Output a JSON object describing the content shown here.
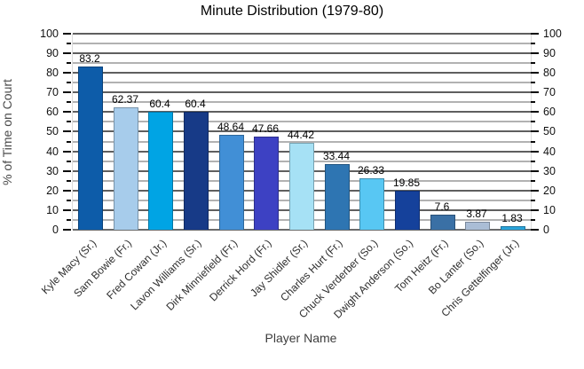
{
  "chart_data": {
    "type": "bar",
    "title": "Minute Distribution (1979-80)",
    "xlabel": "Player Name",
    "ylabel": "% of Time on Court",
    "ylim": [
      0,
      100
    ],
    "y_major_tick": 10,
    "y_minor_tick": 5,
    "grid": true,
    "legend": "none",
    "dual_y_axis_labels": true,
    "categories": [
      "Kyle Macy (Sr.)",
      "Sam Bowie (Fr.)",
      "Fred Cowan (Jr.)",
      "Lavon Williams (Sr.)",
      "Dirk Minniefield (Fr.)",
      "Derrick Hord (Fr.)",
      "Jay Shidler (Sr.)",
      "Charles Hurt (Fr.)",
      "Chuck Verderber (So.)",
      "Dwight Anderson (So.)",
      "Tom Heitz (Fr.)",
      "Bo Lanter (So.)",
      "Chris Gettelfinger (Jr.)"
    ],
    "values": [
      83.2,
      62.37,
      60.4,
      60.4,
      48.64,
      47.66,
      44.42,
      33.44,
      26.33,
      19.85,
      7.6,
      3.87,
      1.83
    ],
    "value_labels": [
      "83.2",
      "62.37",
      "60.4",
      "60.4",
      "48.64",
      "47.66",
      "44.42",
      "33.44",
      "26.33",
      "19.85",
      "7.6",
      "3.87",
      "1.83"
    ],
    "bar_colors": [
      "#0d5ca9",
      "#a7cceb",
      "#00a4e4",
      "#173a87",
      "#418fd6",
      "#3d41c3",
      "#a6e1f5",
      "#2e75b2",
      "#58c7f3",
      "#15419b",
      "#3a70a5",
      "#aabdd6",
      "#2aa4da"
    ],
    "grid_major_color": "#5f5f5f",
    "grid_minor_color": "#b2b2b2",
    "tick_color": "#0a0a0a"
  }
}
